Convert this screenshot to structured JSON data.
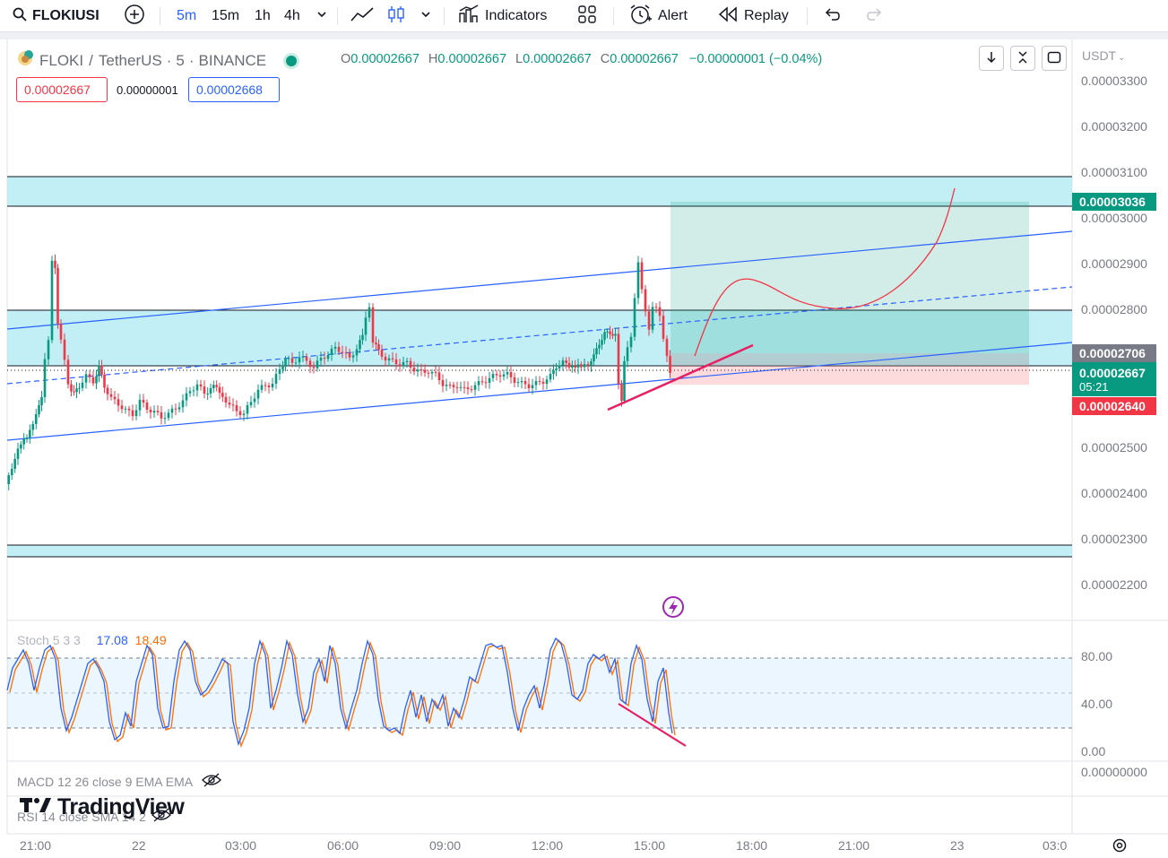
{
  "toolbar": {
    "symbol": "FLOKIUSI",
    "timeframes": [
      "5m",
      "15m",
      "1h",
      "4h"
    ],
    "active_timeframe": "5m",
    "indicators_label": "Indicators",
    "alert_label": "Alert",
    "replay_label": "Replay"
  },
  "legend": {
    "base": "FLOKI",
    "quote": "TetherUS",
    "interval": "5",
    "exchange": "BINANCE",
    "o_label": "O",
    "o": "0.00002667",
    "h_label": "H",
    "h": "0.00002667",
    "l_label": "L",
    "l": "0.00002667",
    "c_label": "C",
    "c": "0.00002667",
    "change": "−0.00000001 (−0.04%)",
    "sell_price": "0.00002667",
    "spread": "0.00000001",
    "buy_price": "0.00002668"
  },
  "price_axis": {
    "currency": "USDT",
    "labels": [
      "0.00003300",
      "0.00003200",
      "0.00003100",
      "0.00003000",
      "0.00002900",
      "0.00002800",
      "0.00002500",
      "0.00002400",
      "0.00002300",
      "0.00002200"
    ],
    "tag_target": "0.00003036",
    "tag_entry": "0.00002706",
    "tag_last": "0.00002667",
    "tag_countdown": "05:21",
    "tag_stop": "0.00002640"
  },
  "time_axis": {
    "labels": [
      "21:00",
      "22",
      "03:00",
      "06:00",
      "09:00",
      "12:00",
      "15:00",
      "18:00",
      "21:00",
      "23",
      "03:0"
    ]
  },
  "stoch": {
    "label": "Stoch 5 3 3",
    "k": "17.08",
    "d": "18.49",
    "axis": [
      "80.00",
      "40.00",
      "0.00"
    ]
  },
  "macd": {
    "label": "MACD 12 26 close 9 EMA EMA",
    "axis": "0.00000000"
  },
  "rsi": {
    "label": "RSI 14 close SMA 14 2"
  },
  "brand": "TradingView",
  "colors": {
    "up": "#089981",
    "down": "#f23645",
    "accent": "#2962ff",
    "zone": "#b2ebf2"
  }
}
